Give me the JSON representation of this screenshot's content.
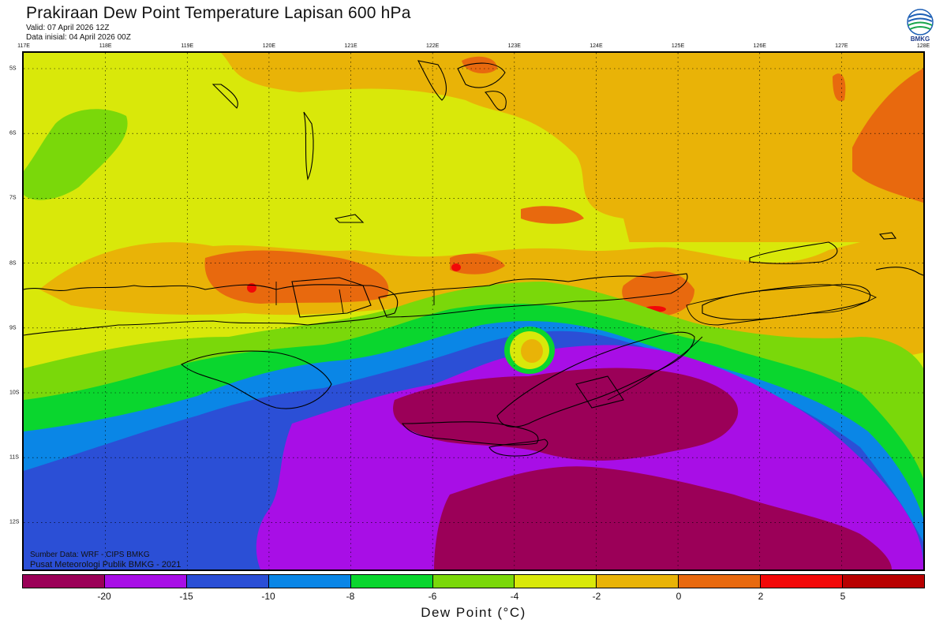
{
  "header": {
    "title": "Prakiraan Dew Point Temperature Lapisan 600 hPa",
    "valid": "Valid: 07 April 2026 12Z",
    "init": "Data inisial: 04 April 2026 00Z"
  },
  "logo": {
    "text": "BMKG",
    "icon": "bmkg-logo-icon"
  },
  "map": {
    "lon_labels": [
      "117E",
      "118E",
      "119E",
      "120E",
      "121E",
      "122E",
      "123E",
      "124E",
      "125E",
      "126E",
      "127E",
      "128E"
    ],
    "lat_labels": [
      "5S",
      "6S",
      "7S",
      "8S",
      "9S",
      "10S",
      "11S",
      "12S"
    ],
    "gridlines": true,
    "region": "Nusa Tenggara Timur"
  },
  "credits": {
    "source": "Sumber Data: WRF - CIPS BMKG",
    "org": "Pusat Meteorologi Publik BMKG - 2021"
  },
  "legend": {
    "colors": [
      "#9b0058",
      "#a80ee6",
      "#2b4fd6",
      "#0a86e6",
      "#0ad62e",
      "#7ad80a",
      "#d9e80a",
      "#e9b307",
      "#e8690e",
      "#f20808",
      "#b80000"
    ],
    "tick_labels": [
      "-20",
      "-15",
      "-10",
      "-8",
      "-6",
      "-4",
      "-2",
      "0",
      "2",
      "5"
    ],
    "unit": "Dew Point (°C)"
  }
}
